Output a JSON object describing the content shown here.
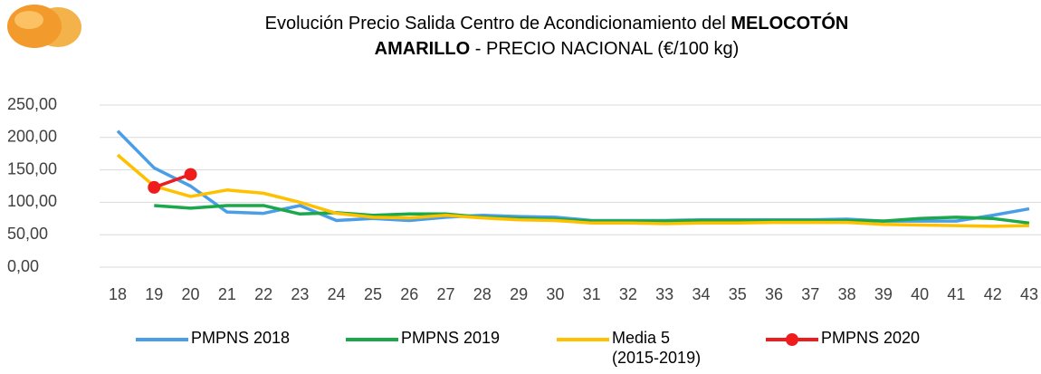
{
  "chart_data": {
    "type": "line",
    "title": [
      "Evolución Precio Salida Centro de Acondicionamiento del ",
      "MELOCOTÓN",
      "AMARILLO",
      " - PRECIO NACIONAL (€/100 kg)"
    ],
    "categories": [
      "18",
      "19",
      "20",
      "21",
      "22",
      "23",
      "24",
      "25",
      "26",
      "27",
      "28",
      "29",
      "30",
      "31",
      "32",
      "33",
      "34",
      "35",
      "36",
      "37",
      "38",
      "39",
      "40",
      "41",
      "42",
      "43"
    ],
    "ylim": [
      0,
      250
    ],
    "yticks": [
      {
        "value": 0,
        "label": "0,00"
      },
      {
        "value": 50,
        "label": "50,00"
      },
      {
        "value": 100,
        "label": "100,00"
      },
      {
        "value": 150,
        "label": "150,00"
      },
      {
        "value": 200,
        "label": "200,00"
      },
      {
        "value": 250,
        "label": "250,00"
      }
    ],
    "grid": true,
    "legend": "bottom",
    "series": [
      {
        "name": "PMPNS 2018",
        "color": "#4a9ee8",
        "values": [
          210,
          153,
          125,
          85,
          83,
          95,
          72,
          75,
          72,
          77,
          80,
          78,
          77,
          72,
          72,
          72,
          73,
          73,
          73,
          73,
          74,
          71,
          71,
          71,
          80,
          90
        ]
      },
      {
        "name": "PMPNS 2019",
        "color": "#1aa84a",
        "values": [
          null,
          95,
          91,
          95,
          95,
          82,
          84,
          80,
          82,
          82,
          77,
          75,
          74,
          71,
          71,
          71,
          72,
          72,
          72,
          72,
          72,
          71,
          75,
          77,
          75,
          68
        ]
      },
      {
        "name": "Media 5 (2015-2019)",
        "color": "#ffc000",
        "values": [
          173,
          125,
          109,
          119,
          114,
          100,
          83,
          77,
          76,
          80,
          76,
          73,
          72,
          68,
          68,
          67,
          68,
          68,
          69,
          69,
          69,
          66,
          65,
          64,
          63,
          64
        ]
      },
      {
        "name": "PMPNS 2020",
        "color": "#ee1c1c",
        "marker": true,
        "values": [
          null,
          123,
          143,
          null,
          null,
          null,
          null,
          null,
          null,
          null,
          null,
          null,
          null,
          null,
          null,
          null,
          null,
          null,
          null,
          null,
          null,
          null,
          null,
          null,
          null,
          null
        ]
      }
    ]
  }
}
